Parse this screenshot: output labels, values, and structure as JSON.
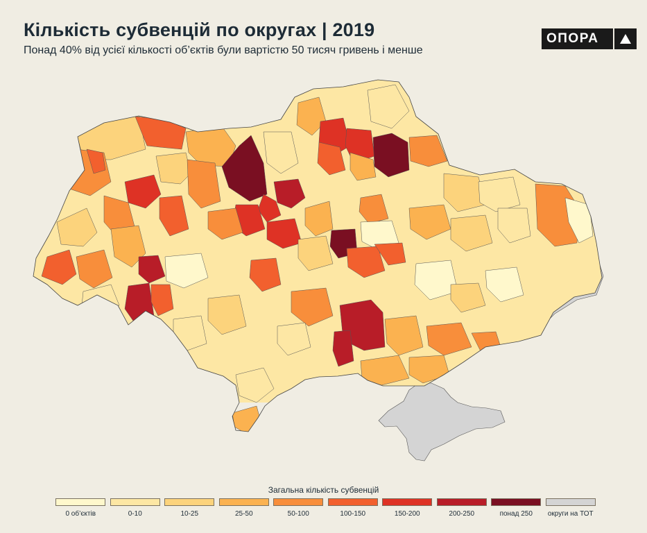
{
  "header": {
    "title": "Кількість субвенцій по округах | 2019",
    "subtitle": "Понад 40% від усієї кількості об’єктів були вартістю 50 тисяч гривень і менше"
  },
  "logo": {
    "text": "ОПОРА",
    "icon": "triangle-icon"
  },
  "legend": {
    "title": "Загальна кількість субвенцій",
    "items": [
      {
        "label": "0 об’єктів",
        "color": "#fff8cc"
      },
      {
        "label": "0-10",
        "color": "#fde7a4"
      },
      {
        "label": "10-25",
        "color": "#fcd37c"
      },
      {
        "label": "25-50",
        "color": "#fbb250"
      },
      {
        "label": "50-100",
        "color": "#f88e3b"
      },
      {
        "label": "100-150",
        "color": "#f2602e"
      },
      {
        "label": "150-200",
        "color": "#de3225"
      },
      {
        "label": "200-250",
        "color": "#b81d28"
      },
      {
        "label": "понад 250",
        "color": "#7a0f22"
      },
      {
        "label": "округи на ТОТ",
        "color": "#d4d4d4"
      }
    ]
  }
}
